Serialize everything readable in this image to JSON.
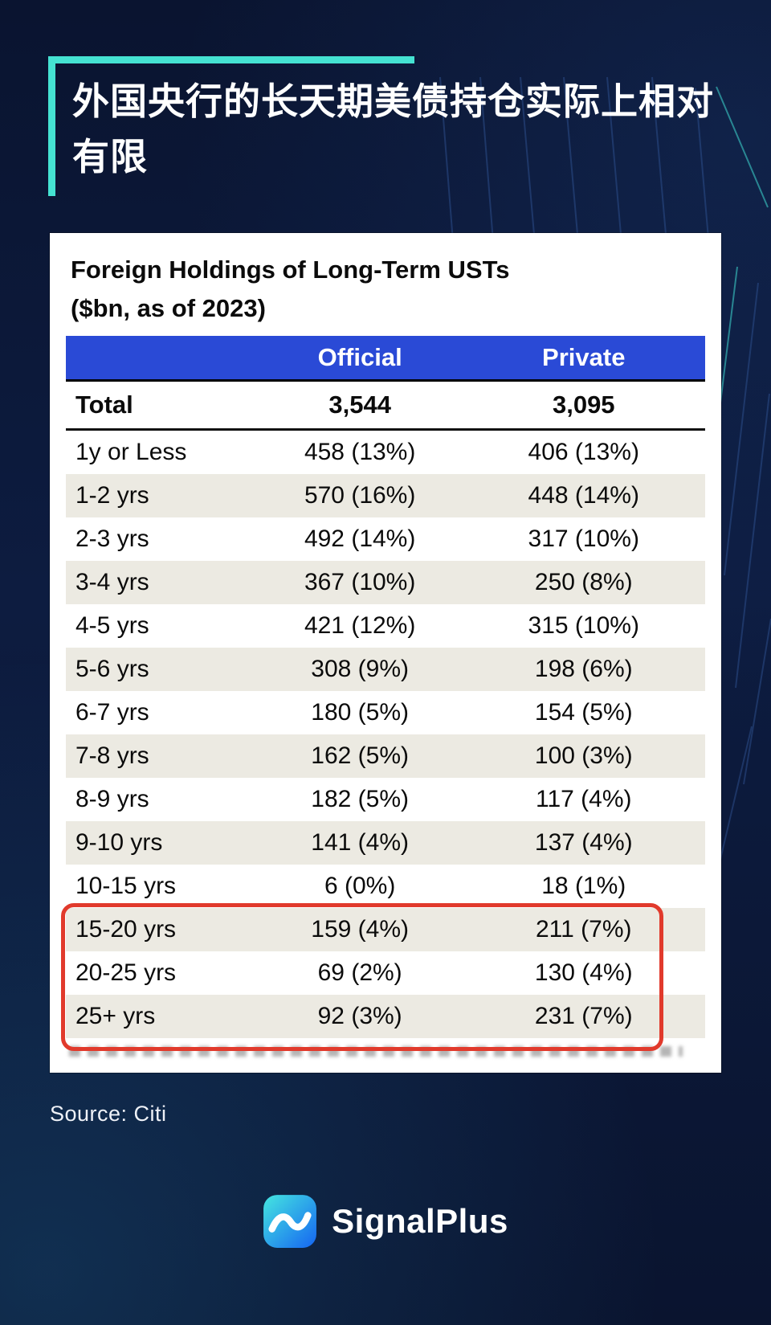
{
  "colors": {
    "background_navy": "#0b1734",
    "accent_teal": "#45e2d2",
    "table_header_blue": "#2a4ad6",
    "row_alt_beige": "#eceae2",
    "highlight_red": "#e13a2c"
  },
  "header": {
    "title": "外国央行的长天期美债持仓实际上相对有限"
  },
  "chart_data": {
    "type": "table",
    "title": "Foreign Holdings of Long-Term USTs",
    "subtitle": "($bn, as of 2023)",
    "columns": [
      "Official",
      "Private"
    ],
    "total_row": {
      "label": "Total",
      "official": "3,544",
      "private": "3,095"
    },
    "rows": [
      {
        "label": "1y or Less",
        "official": "458 (13%)",
        "private": "406 (13%)"
      },
      {
        "label": "1-2 yrs",
        "official": "570 (16%)",
        "private": "448 (14%)"
      },
      {
        "label": "2-3 yrs",
        "official": "492 (14%)",
        "private": "317 (10%)"
      },
      {
        "label": "3-4 yrs",
        "official": "367 (10%)",
        "private": "250 (8%)"
      },
      {
        "label": "4-5 yrs",
        "official": "421 (12%)",
        "private": "315 (10%)"
      },
      {
        "label": "5-6 yrs",
        "official": "308 (9%)",
        "private": "198 (6%)"
      },
      {
        "label": "6-7 yrs",
        "official": "180 (5%)",
        "private": "154 (5%)"
      },
      {
        "label": "7-8 yrs",
        "official": "162 (5%)",
        "private": "100 (3%)"
      },
      {
        "label": "8-9 yrs",
        "official": "182 (5%)",
        "private": "117 (4%)"
      },
      {
        "label": "9-10 yrs",
        "official": "141 (4%)",
        "private": "137 (4%)"
      },
      {
        "label": "10-15 yrs",
        "official": "6 (0%)",
        "private": "18 (1%)"
      },
      {
        "label": "15-20 yrs",
        "official": "159 (4%)",
        "private": "211 (7%)"
      },
      {
        "label": "20-25 yrs",
        "official": "69 (2%)",
        "private": "130 (4%)"
      },
      {
        "label": "25+ yrs",
        "official": "92 (3%)",
        "private": "231 (7%)"
      }
    ],
    "highlighted_rows": [
      "15-20 yrs",
      "20-25 yrs",
      "25+ yrs"
    ]
  },
  "footer": {
    "source": "Source: Citi",
    "brand": "SignalPlus"
  }
}
